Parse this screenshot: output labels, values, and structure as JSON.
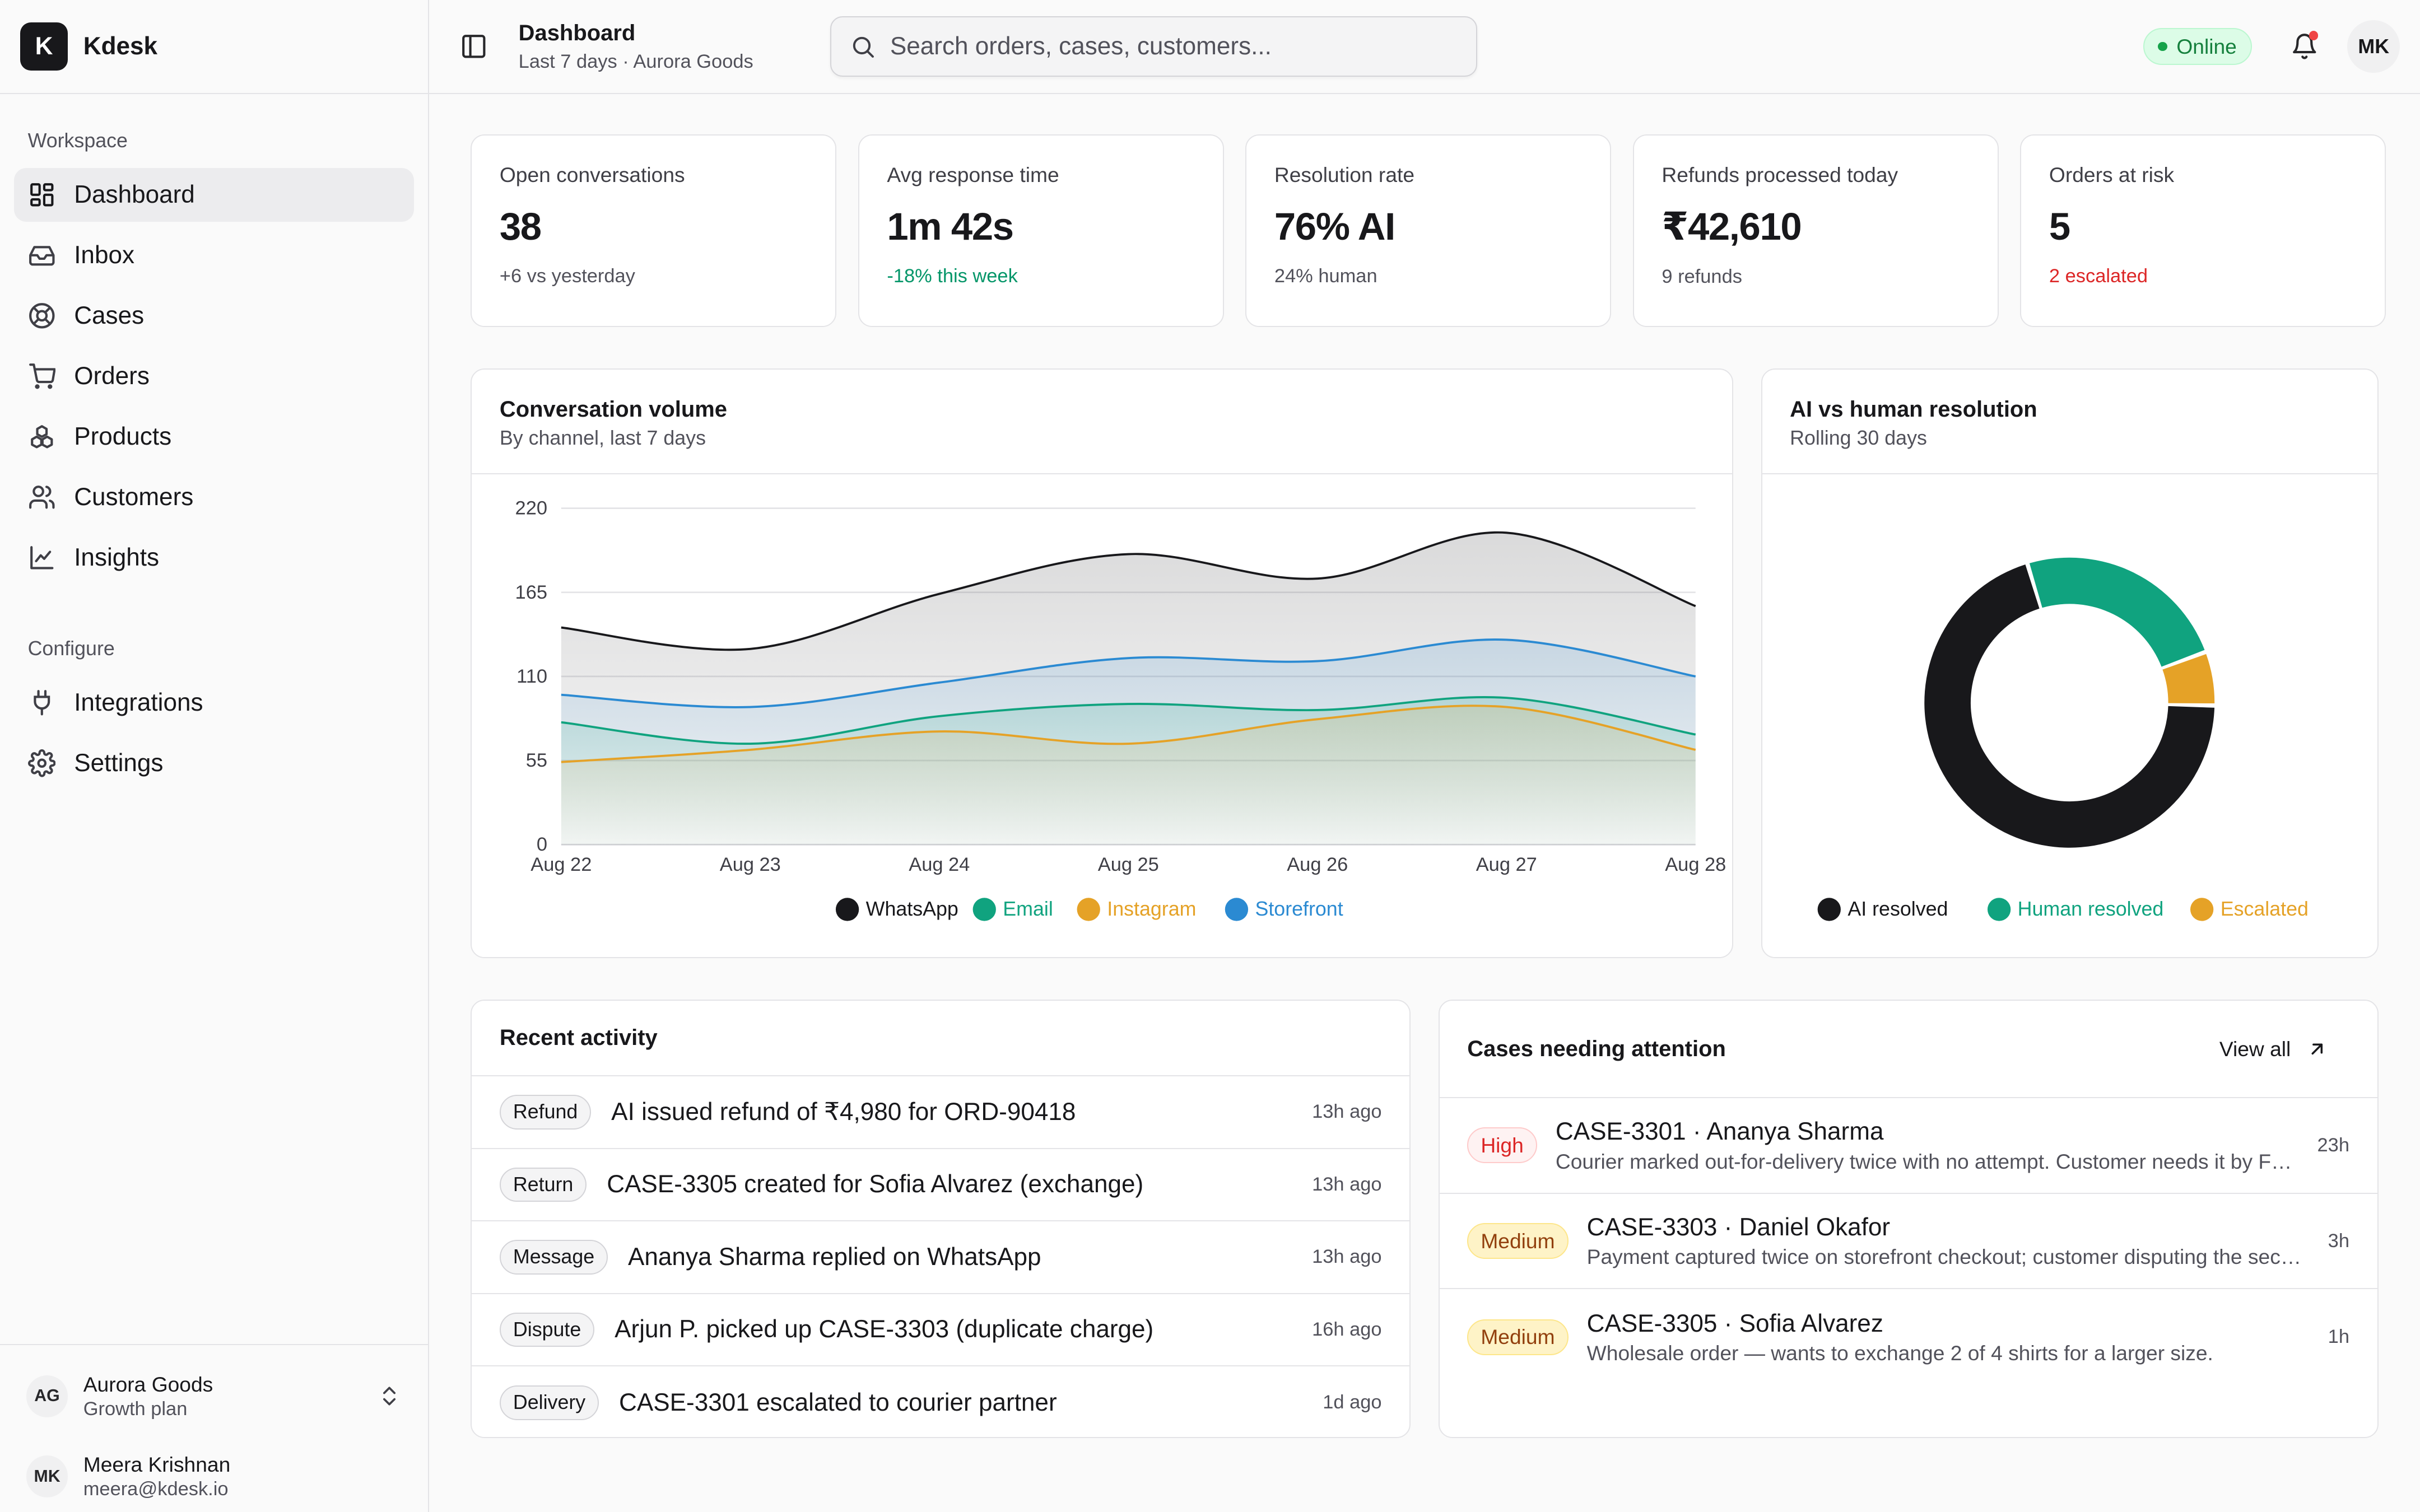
{
  "brand": {
    "logo_letter": "K",
    "name": "Kdesk"
  },
  "sidebar": {
    "workspace_label": "Workspace",
    "workspace_items": [
      {
        "label": "Dashboard",
        "icon": "grid-icon",
        "active": true
      },
      {
        "label": "Inbox",
        "icon": "inbox-icon"
      },
      {
        "label": "Cases",
        "icon": "lifebuoy-icon"
      },
      {
        "label": "Orders",
        "icon": "cart-icon"
      },
      {
        "label": "Products",
        "icon": "boxes-icon"
      },
      {
        "label": "Customers",
        "icon": "users-icon"
      },
      {
        "label": "Insights",
        "icon": "line-chart-icon"
      }
    ],
    "configure_label": "Configure",
    "configure_items": [
      {
        "label": "Integrations",
        "icon": "plug-icon"
      },
      {
        "label": "Settings",
        "icon": "gear-icon"
      }
    ],
    "account": {
      "initials": "AG",
      "name": "Aurora Goods",
      "plan": "Growth plan"
    },
    "user": {
      "initials": "MK",
      "name": "Meera Krishnan",
      "email": "meera@kdesk.io"
    }
  },
  "topbar": {
    "title": "Dashboard",
    "subtitle": "Last 7 days · Aurora Goods",
    "search_placeholder": "Search orders, cases, customers...",
    "status": "Online",
    "avatar_initials": "MK"
  },
  "kpis": [
    {
      "label": "Open conversations",
      "value": "38",
      "note": "+6 vs yesterday",
      "tone": "neutral"
    },
    {
      "label": "Avg response time",
      "value": "1m 42s",
      "note": "-18% this week",
      "tone": "green"
    },
    {
      "label": "Resolution rate",
      "value": "76% AI",
      "note": "24% human",
      "tone": "neutral"
    },
    {
      "label": "Refunds processed today",
      "value": "₹42,610",
      "note": "9 refunds",
      "tone": "neutral"
    },
    {
      "label": "Orders at risk",
      "value": "5",
      "note": "2 escalated",
      "tone": "red"
    }
  ],
  "volume_card": {
    "title": "Conversation volume",
    "subtitle": "By channel, last 7 days"
  },
  "donut_card": {
    "title": "AI vs human resolution",
    "subtitle": "Rolling 30 days"
  },
  "chart_data": [
    {
      "type": "area",
      "x": [
        "Aug 22",
        "Aug 23",
        "Aug 24",
        "Aug 25",
        "Aug 26",
        "Aug 27",
        "Aug 28"
      ],
      "yticks": [
        0,
        55,
        110,
        165,
        220
      ],
      "ylim": [
        0,
        220
      ],
      "grid": true,
      "legend": "bottom",
      "series": [
        {
          "name": "WhatsApp",
          "color": "#18181b",
          "values": [
            142,
            128,
            164,
            190,
            174,
            204,
            156
          ]
        },
        {
          "name": "Email",
          "color": "#10a37f",
          "values": [
            80,
            66,
            84,
            92,
            88,
            96,
            72
          ]
        },
        {
          "name": "Instagram",
          "color": "#e5a227",
          "values": [
            54,
            62,
            74,
            66,
            82,
            90,
            62
          ]
        },
        {
          "name": "Storefront",
          "color": "#2b8ad2",
          "values": [
            98,
            90,
            106,
            122,
            120,
            134,
            110
          ]
        }
      ]
    },
    {
      "type": "pie",
      "donut": true,
      "legend": "bottom",
      "categories": [
        "AI resolved",
        "Human resolved",
        "Escalated"
      ],
      "values": [
        70,
        24,
        6
      ],
      "colors": [
        "#18181b",
        "#10a37f",
        "#e5a227"
      ]
    }
  ],
  "activity": {
    "title": "Recent activity",
    "rows": [
      {
        "tag": "Refund",
        "text": "AI issued refund of ₹4,980 for ORD-90418",
        "time": "13h ago"
      },
      {
        "tag": "Return",
        "text": "CASE-3305 created for Sofia Alvarez (exchange)",
        "time": "13h ago"
      },
      {
        "tag": "Message",
        "text": "Ananya Sharma replied on WhatsApp",
        "time": "13h ago"
      },
      {
        "tag": "Dispute",
        "text": "Arjun P. picked up CASE-3303 (duplicate charge)",
        "time": "16h ago"
      },
      {
        "tag": "Delivery",
        "text": "CASE-3301 escalated to courier partner",
        "time": "1d ago"
      }
    ]
  },
  "cases": {
    "title": "Cases needing attention",
    "view_all": "View all",
    "rows": [
      {
        "priority": "High",
        "level": "high",
        "title": "CASE-3301 · Ananya Sharma",
        "desc": "Courier marked out-for-delivery twice with no attempt. Customer needs it by Friday.",
        "time": "23h"
      },
      {
        "priority": "Medium",
        "level": "medium",
        "title": "CASE-3303 · Daniel Okafor",
        "desc": "Payment captured twice on storefront checkout; customer disputing the second charge.",
        "time": "3h"
      },
      {
        "priority": "Medium",
        "level": "medium",
        "title": "CASE-3305 · Sofia Alvarez",
        "desc": "Wholesale order — wants to exchange 2 of 4 shirts for a larger size.",
        "time": "1h"
      }
    ]
  }
}
